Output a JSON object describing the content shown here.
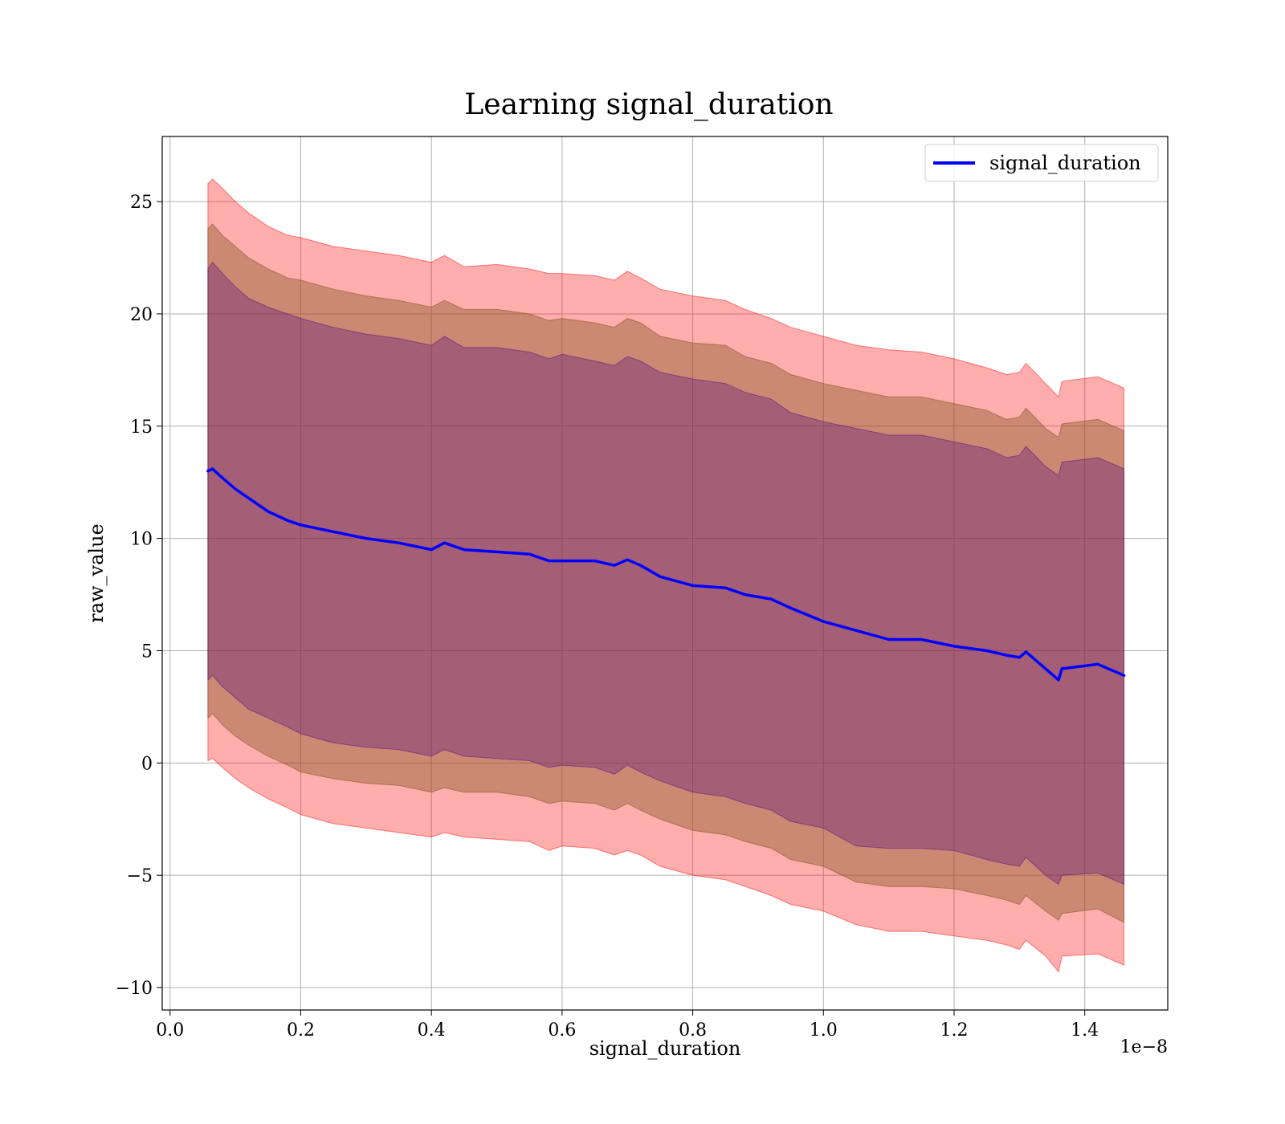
{
  "chart_data": {
    "type": "area",
    "title": "Learning signal_duration",
    "xlabel": "signal_duration",
    "ylabel": "raw_value",
    "x_offset_text": "1e−8",
    "xlim": [
      -0.012,
      1.527
    ],
    "ylim": [
      -11.0,
      27.9
    ],
    "x_ticks": [
      0.0,
      0.2,
      0.4,
      0.6,
      0.8,
      1.0,
      1.2,
      1.4
    ],
    "x_tick_labels": [
      "0.0",
      "0.2",
      "0.4",
      "0.6",
      "0.8",
      "1.0",
      "1.2",
      "1.4"
    ],
    "y_ticks": [
      -10,
      -5,
      0,
      5,
      10,
      15,
      20,
      25
    ],
    "y_tick_labels": [
      "−10",
      "−5",
      "0",
      "5",
      "10",
      "15",
      "20",
      "25"
    ],
    "grid": true,
    "legend_position": "top-right",
    "x": [
      0.058,
      0.065,
      0.08,
      0.1,
      0.12,
      0.15,
      0.18,
      0.2,
      0.25,
      0.3,
      0.35,
      0.4,
      0.42,
      0.45,
      0.5,
      0.55,
      0.58,
      0.6,
      0.65,
      0.68,
      0.7,
      0.72,
      0.75,
      0.8,
      0.85,
      0.88,
      0.92,
      0.95,
      1.0,
      1.05,
      1.1,
      1.15,
      1.2,
      1.25,
      1.28,
      1.3,
      1.31,
      1.34,
      1.36,
      1.365,
      1.42,
      1.46
    ],
    "series": [
      {
        "name": "signal_duration",
        "color": "#0000ff",
        "values": [
          13.0,
          13.1,
          12.7,
          12.2,
          11.8,
          11.2,
          10.8,
          10.6,
          10.3,
          10.0,
          9.8,
          9.5,
          9.8,
          9.5,
          9.4,
          9.3,
          9.0,
          9.0,
          9.0,
          8.8,
          9.05,
          8.8,
          8.3,
          7.9,
          7.8,
          7.5,
          7.3,
          6.9,
          6.3,
          5.9,
          5.5,
          5.5,
          5.2,
          5.0,
          4.8,
          4.7,
          4.95,
          4.2,
          3.7,
          4.2,
          4.4,
          3.9
        ]
      }
    ],
    "bands": [
      {
        "color": "#ff0000",
        "opacity": 0.32,
        "upper": [
          25.8,
          26.0,
          25.6,
          25.0,
          24.5,
          23.9,
          23.5,
          23.4,
          23.0,
          22.8,
          22.6,
          22.3,
          22.6,
          22.1,
          22.2,
          22.0,
          21.8,
          21.8,
          21.7,
          21.5,
          21.9,
          21.6,
          21.1,
          20.8,
          20.6,
          20.2,
          19.8,
          19.4,
          19.0,
          18.6,
          18.4,
          18.3,
          18.0,
          17.6,
          17.3,
          17.4,
          17.8,
          16.9,
          16.3,
          17.0,
          17.2,
          16.7
        ],
        "lower": [
          0.1,
          0.2,
          -0.2,
          -0.7,
          -1.1,
          -1.6,
          -2.0,
          -2.3,
          -2.7,
          -2.9,
          -3.1,
          -3.3,
          -3.1,
          -3.3,
          -3.4,
          -3.5,
          -3.9,
          -3.7,
          -3.8,
          -4.1,
          -3.9,
          -4.1,
          -4.6,
          -5.0,
          -5.2,
          -5.5,
          -5.9,
          -6.3,
          -6.6,
          -7.2,
          -7.5,
          -7.5,
          -7.7,
          -7.9,
          -8.1,
          -8.3,
          -7.9,
          -8.6,
          -9.3,
          -8.6,
          -8.5,
          -9.0
        ]
      },
      {
        "color": "#8b5a2b",
        "opacity": 0.45,
        "upper": [
          23.8,
          24.0,
          23.5,
          23.0,
          22.5,
          22.0,
          21.6,
          21.5,
          21.1,
          20.8,
          20.6,
          20.3,
          20.6,
          20.2,
          20.2,
          20.0,
          19.7,
          19.8,
          19.6,
          19.4,
          19.8,
          19.6,
          19.0,
          18.7,
          18.6,
          18.1,
          17.8,
          17.3,
          16.9,
          16.6,
          16.3,
          16.3,
          16.0,
          15.7,
          15.3,
          15.4,
          15.8,
          14.9,
          14.5,
          15.1,
          15.3,
          14.8
        ],
        "lower": [
          2.0,
          2.2,
          1.7,
          1.2,
          0.8,
          0.3,
          -0.1,
          -0.4,
          -0.7,
          -0.9,
          -1.0,
          -1.3,
          -1.1,
          -1.3,
          -1.3,
          -1.5,
          -1.8,
          -1.7,
          -1.8,
          -2.1,
          -1.8,
          -2.1,
          -2.5,
          -3.0,
          -3.2,
          -3.5,
          -3.8,
          -4.3,
          -4.6,
          -5.3,
          -5.5,
          -5.5,
          -5.6,
          -5.9,
          -6.1,
          -6.3,
          -5.9,
          -6.6,
          -7.0,
          -6.7,
          -6.5,
          -7.1
        ]
      },
      {
        "color": "#4b0082",
        "opacity": 0.3,
        "upper": [
          22.0,
          22.3,
          21.8,
          21.2,
          20.7,
          20.3,
          20.0,
          19.8,
          19.4,
          19.1,
          18.9,
          18.6,
          19.0,
          18.5,
          18.5,
          18.3,
          18.0,
          18.2,
          17.9,
          17.7,
          18.1,
          17.9,
          17.4,
          17.1,
          16.9,
          16.5,
          16.2,
          15.6,
          15.2,
          14.9,
          14.6,
          14.6,
          14.3,
          14.0,
          13.6,
          13.7,
          14.1,
          13.2,
          12.8,
          13.4,
          13.6,
          13.1
        ],
        "lower": [
          3.7,
          3.9,
          3.4,
          2.9,
          2.4,
          2.0,
          1.6,
          1.3,
          0.9,
          0.7,
          0.6,
          0.3,
          0.6,
          0.3,
          0.2,
          0.1,
          -0.2,
          -0.1,
          -0.2,
          -0.5,
          -0.1,
          -0.4,
          -0.8,
          -1.3,
          -1.5,
          -1.8,
          -2.1,
          -2.6,
          -2.9,
          -3.7,
          -3.8,
          -3.8,
          -3.9,
          -4.3,
          -4.5,
          -4.6,
          -4.2,
          -5.0,
          -5.4,
          -5.0,
          -4.9,
          -5.4
        ]
      }
    ]
  }
}
